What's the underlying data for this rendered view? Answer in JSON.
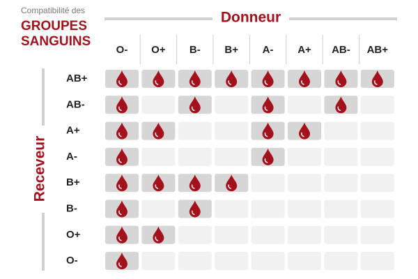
{
  "header": {
    "subtitle": "Compatibilité des",
    "title_line1": "GROUPES",
    "title_line2": "SANGUINS"
  },
  "donor_label": "Donneur",
  "receiver_label": "Receveur",
  "donors": [
    "O-",
    "O+",
    "B-",
    "B+",
    "A-",
    "A+",
    "AB-",
    "AB+"
  ],
  "receivers": [
    "AB+",
    "AB-",
    "A+",
    "A-",
    "B+",
    "B-",
    "O+",
    "O-"
  ],
  "compatible": [
    [
      true,
      true,
      true,
      true,
      true,
      true,
      true,
      true
    ],
    [
      true,
      false,
      true,
      false,
      true,
      false,
      true,
      false
    ],
    [
      true,
      true,
      false,
      false,
      true,
      true,
      false,
      false
    ],
    [
      true,
      false,
      false,
      false,
      true,
      false,
      false,
      false
    ],
    [
      true,
      true,
      true,
      true,
      false,
      false,
      false,
      false
    ],
    [
      true,
      false,
      true,
      false,
      false,
      false,
      false,
      false
    ],
    [
      true,
      true,
      false,
      false,
      false,
      false,
      false,
      false
    ],
    [
      true,
      false,
      false,
      false,
      false,
      false,
      false,
      false
    ]
  ]
}
